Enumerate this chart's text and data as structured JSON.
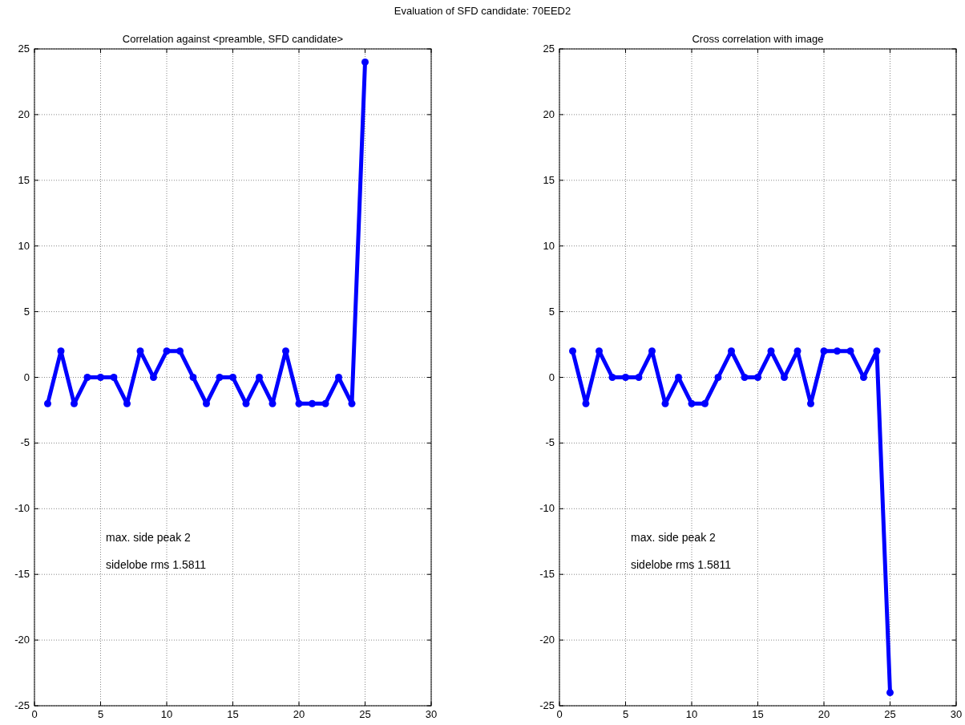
{
  "chart_data": [
    {
      "type": "line",
      "title": "Correlation against <preamble, SFD candidate>",
      "x": [
        1,
        2,
        3,
        4,
        5,
        6,
        7,
        8,
        9,
        10,
        11,
        12,
        13,
        14,
        15,
        16,
        17,
        18,
        19,
        20,
        21,
        22,
        23,
        24,
        25
      ],
      "series": [
        {
          "color": "#0000ff",
          "values": [
            -2,
            2,
            -2,
            0,
            0,
            0,
            -2,
            2,
            0,
            2,
            2,
            0,
            -2,
            0,
            0,
            -2,
            0,
            -2,
            2,
            -2,
            -2,
            -2,
            0,
            -2,
            24
          ]
        }
      ],
      "xlim": [
        0,
        30
      ],
      "xticks": [
        0,
        5,
        10,
        15,
        20,
        25,
        30
      ],
      "ylim": [
        -25,
        25
      ],
      "yticks": [
        -25,
        -20,
        -15,
        -10,
        -5,
        0,
        5,
        10,
        15,
        20,
        25
      ],
      "grid": true,
      "marker": "circle",
      "line_style": "solid",
      "annotations": [
        "Evaluation of SFD candidate: 70EED2",
        "max. side peak 2",
        "sidelobe rms 1.5811"
      ]
    },
    {
      "type": "line",
      "title": "Cross correlation with image",
      "x": [
        1,
        2,
        3,
        4,
        5,
        6,
        7,
        8,
        9,
        10,
        11,
        12,
        13,
        14,
        15,
        16,
        17,
        18,
        19,
        20,
        21,
        22,
        23,
        24,
        25
      ],
      "series": [
        {
          "color": "#0000ff",
          "values": [
            2,
            -2,
            2,
            0,
            0,
            0,
            2,
            -2,
            0,
            -2,
            -2,
            0,
            2,
            0,
            0,
            2,
            0,
            2,
            -2,
            2,
            2,
            2,
            0,
            2,
            -24
          ]
        }
      ],
      "xlim": [
        0,
        30
      ],
      "xticks": [
        0,
        5,
        10,
        15,
        20,
        25,
        30
      ],
      "ylim": [
        -25,
        25
      ],
      "yticks": [
        -25,
        -20,
        -15,
        -10,
        -5,
        0,
        5,
        10,
        15,
        20,
        25
      ],
      "grid": true,
      "marker": "circle",
      "line_style": "solid",
      "annotations": [
        "max. side peak 2",
        "sidelobe rms 1.5811"
      ]
    }
  ]
}
